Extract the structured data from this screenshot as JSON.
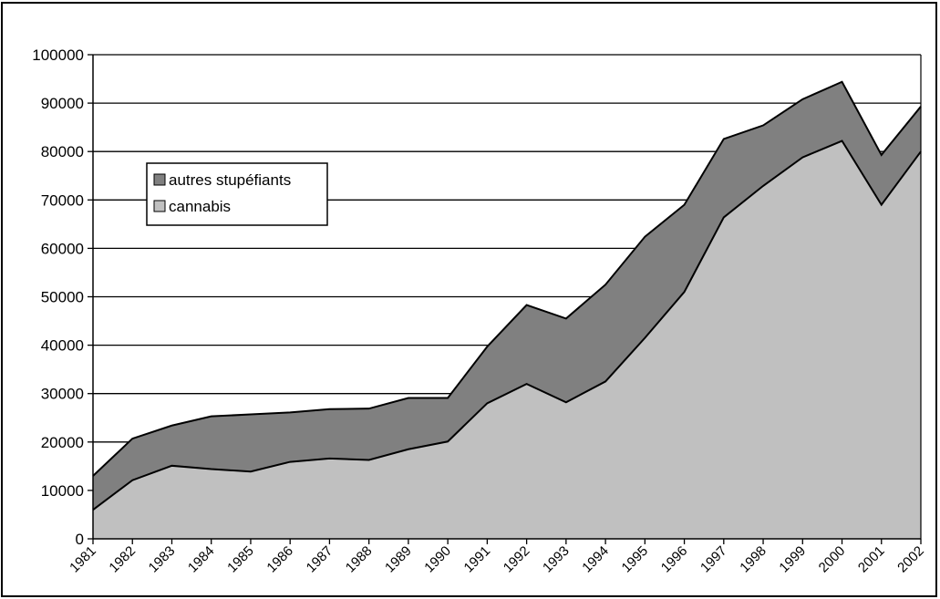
{
  "chart_data": {
    "type": "area",
    "stacked": true,
    "title": "",
    "xlabel": "",
    "ylabel": "",
    "ylim": [
      0,
      100000
    ],
    "y_ticks": [
      0,
      10000,
      20000,
      30000,
      40000,
      50000,
      60000,
      70000,
      80000,
      90000,
      100000
    ],
    "grid": "horizontal",
    "legend_position": "upper-left",
    "categories": [
      "1981",
      "1982",
      "1983",
      "1984",
      "1985",
      "1986",
      "1987",
      "1988",
      "1989",
      "1990",
      "1991",
      "1992",
      "1993",
      "1994",
      "1995",
      "1996",
      "1997",
      "1998",
      "1999",
      "2000",
      "2001",
      "2002"
    ],
    "series": [
      {
        "name": "cannabis",
        "color": "#c0c0c0",
        "values": [
          6000,
          12100,
          15100,
          14400,
          13900,
          15900,
          16600,
          16300,
          18500,
          20100,
          28000,
          32000,
          28200,
          32500,
          41500,
          51000,
          66400,
          72900,
          78800,
          82200,
          69000,
          80000
        ]
      },
      {
        "name": "autres stupéfiants",
        "color": "#808080",
        "values": [
          7000,
          8600,
          8300,
          10900,
          11800,
          10200,
          10200,
          10600,
          10600,
          9000,
          11700,
          16300,
          17300,
          20000,
          20900,
          18000,
          16200,
          12500,
          12000,
          12200,
          10300,
          9300
        ]
      }
    ]
  }
}
